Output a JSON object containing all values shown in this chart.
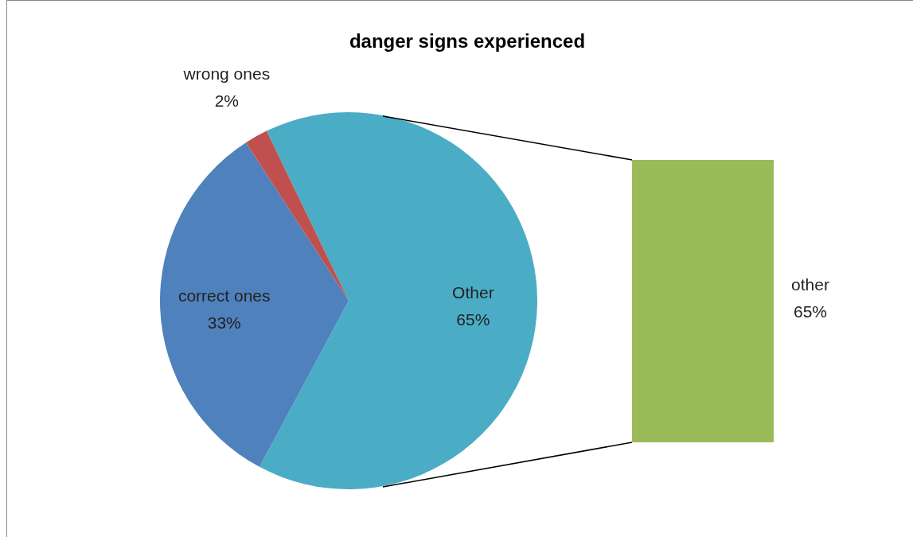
{
  "chart_data": [
    {
      "type": "pie",
      "title": "danger signs experienced",
      "categories": [
        "Other",
        "correct ones",
        "wrong ones"
      ],
      "values": [
        65,
        33,
        2
      ],
      "colors": [
        "#4bacc6",
        "#4f81bd",
        "#c0504d"
      ],
      "value_labels": [
        "65%",
        "33%",
        "2%"
      ]
    },
    {
      "type": "other",
      "categories": [
        "other"
      ],
      "values": [
        65
      ],
      "color": "#9bbb59",
      "value_labels": [
        "65%"
      ]
    }
  ]
}
